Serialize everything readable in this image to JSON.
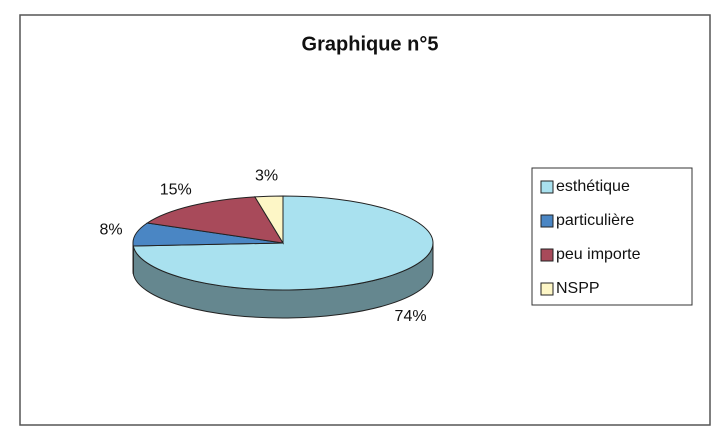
{
  "chart_data": {
    "type": "pie3d",
    "title": "Graphique n°5",
    "categories": [
      "esthétique",
      "particulière",
      "peu importe",
      "NSPP"
    ],
    "values": [
      74,
      8,
      15,
      3
    ],
    "value_labels": [
      "74%",
      "8%",
      "15%",
      "3%"
    ],
    "colors": [
      "#a9e1ef",
      "#4a86c4",
      "#a84a5a",
      "#fdf6c6"
    ],
    "legend": "right"
  }
}
